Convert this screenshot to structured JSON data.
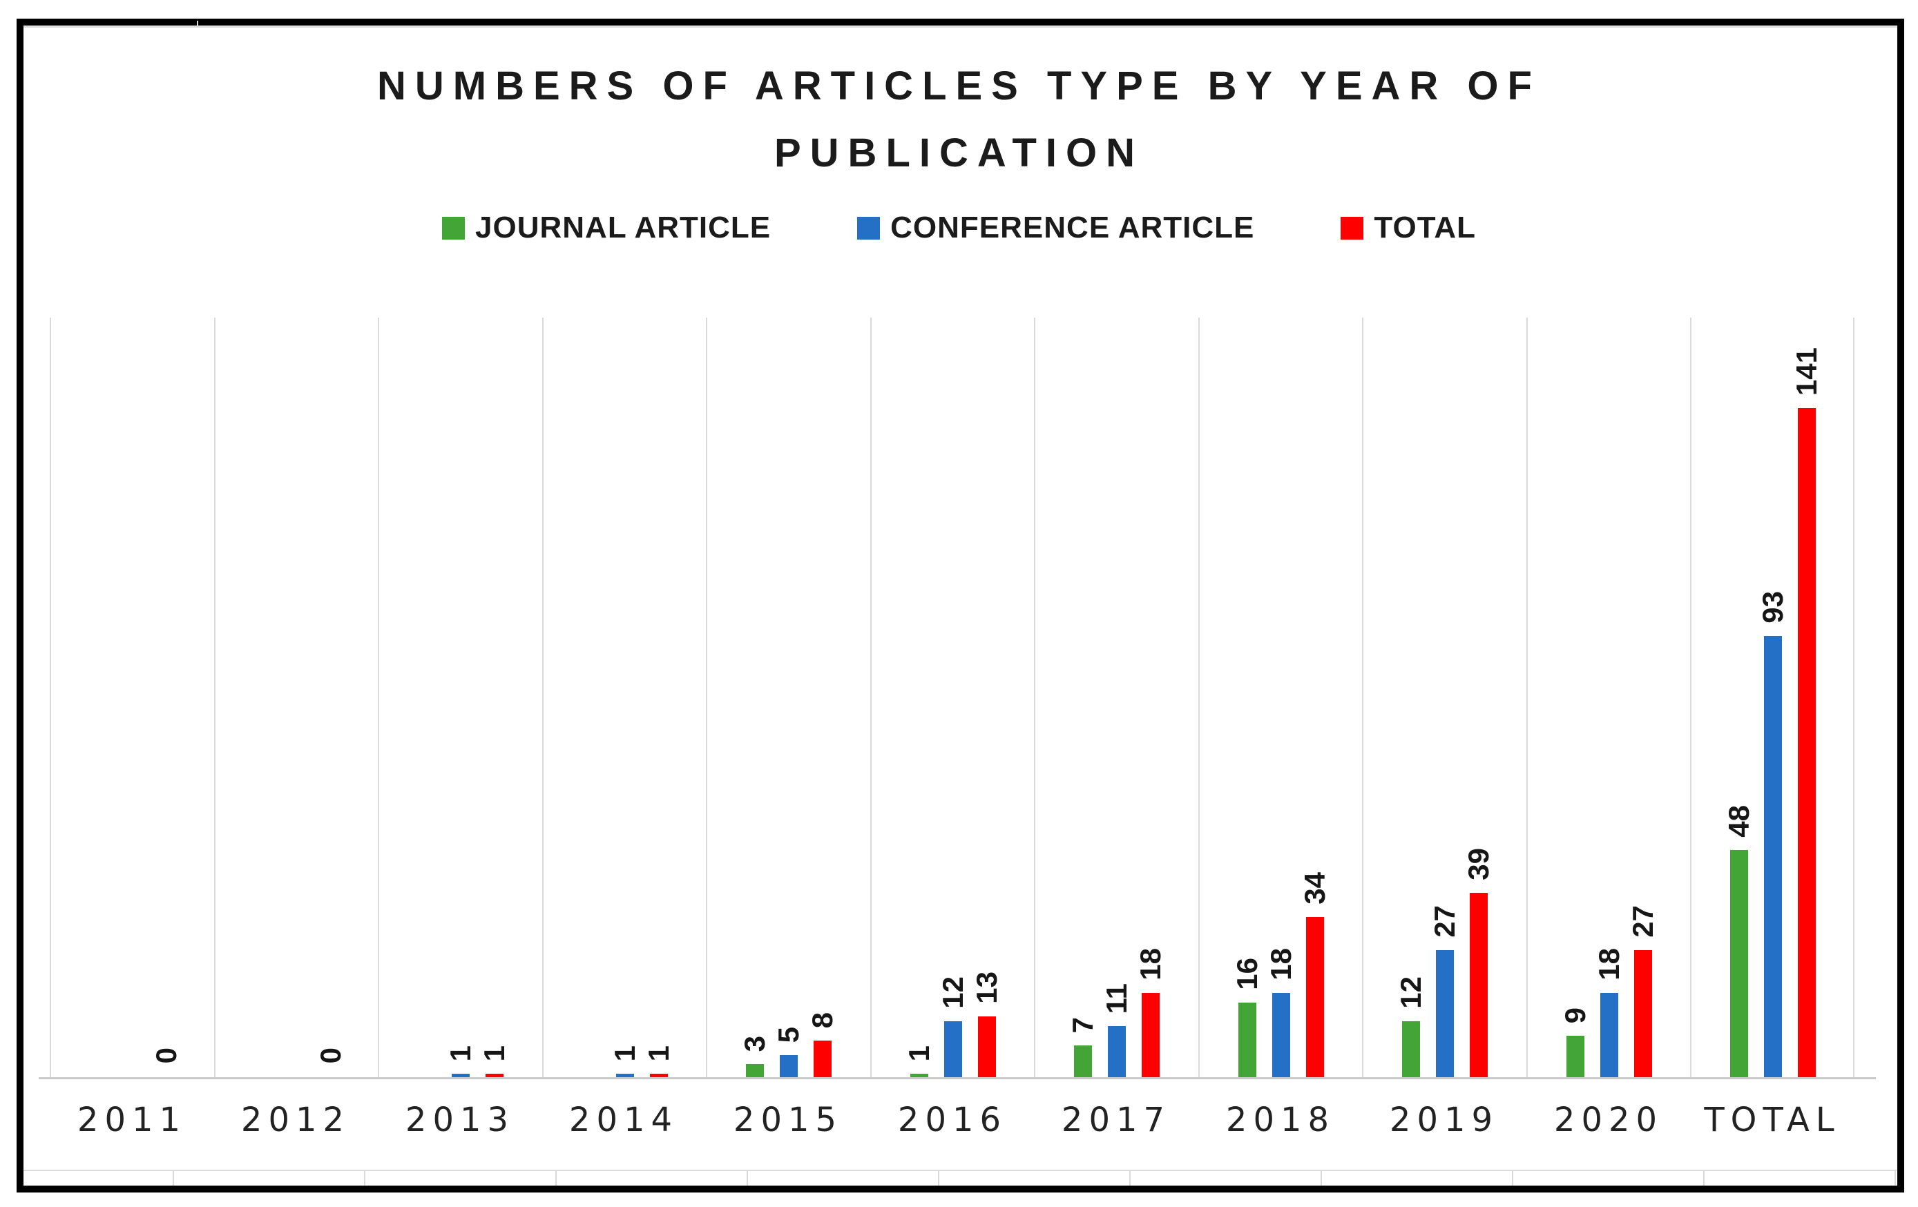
{
  "title": {
    "line1": "NUMBERS OF ARTICLES TYPE BY YEAR OF",
    "line2": "PUBLICATION"
  },
  "legend": {
    "position": "top",
    "items": [
      {
        "label": "JOURNAL ARTICLE",
        "color": "#43A536"
      },
      {
        "label": "CONFERENCE ARTICLE",
        "color": "#2470C6"
      },
      {
        "label": "TOTAL",
        "color": "#FE0000"
      }
    ]
  },
  "chart_data": {
    "type": "bar",
    "title": "NUMBERS OF ARTICLES TYPE BY YEAR OF PUBLICATION",
    "categories": [
      "2011",
      "2012",
      "2013",
      "2014",
      "2015",
      "2016",
      "2017",
      "2018",
      "2019",
      "2020",
      "TOTAL"
    ],
    "series": [
      {
        "name": "JOURNAL ARTICLE",
        "color": "#43A536",
        "values": [
          0,
          0,
          0,
          0,
          3,
          1,
          7,
          16,
          12,
          9,
          48
        ]
      },
      {
        "name": "CONFERENCE ARTICLE",
        "color": "#2470C6",
        "values": [
          0,
          0,
          1,
          1,
          5,
          12,
          11,
          18,
          27,
          18,
          93
        ]
      },
      {
        "name": "TOTAL",
        "color": "#FE0000",
        "values": [
          0,
          0,
          1,
          1,
          8,
          13,
          18,
          34,
          39,
          27,
          141
        ]
      }
    ],
    "xlabel": "",
    "ylabel": "",
    "ylim": [
      0,
      160
    ],
    "y_axis_labels_visible": false,
    "grid": "vertical category separators only, light gray",
    "legend_position": "top",
    "data_labels": "values shown above bars, rotated 90° counterclockwise; zero-value years 2011 and 2012 show a single 0; zero journal values in 2013/2014 show no bar and no label",
    "gridline_color": "#D9D9D9",
    "axis_line_color": "#C9C9C9"
  }
}
